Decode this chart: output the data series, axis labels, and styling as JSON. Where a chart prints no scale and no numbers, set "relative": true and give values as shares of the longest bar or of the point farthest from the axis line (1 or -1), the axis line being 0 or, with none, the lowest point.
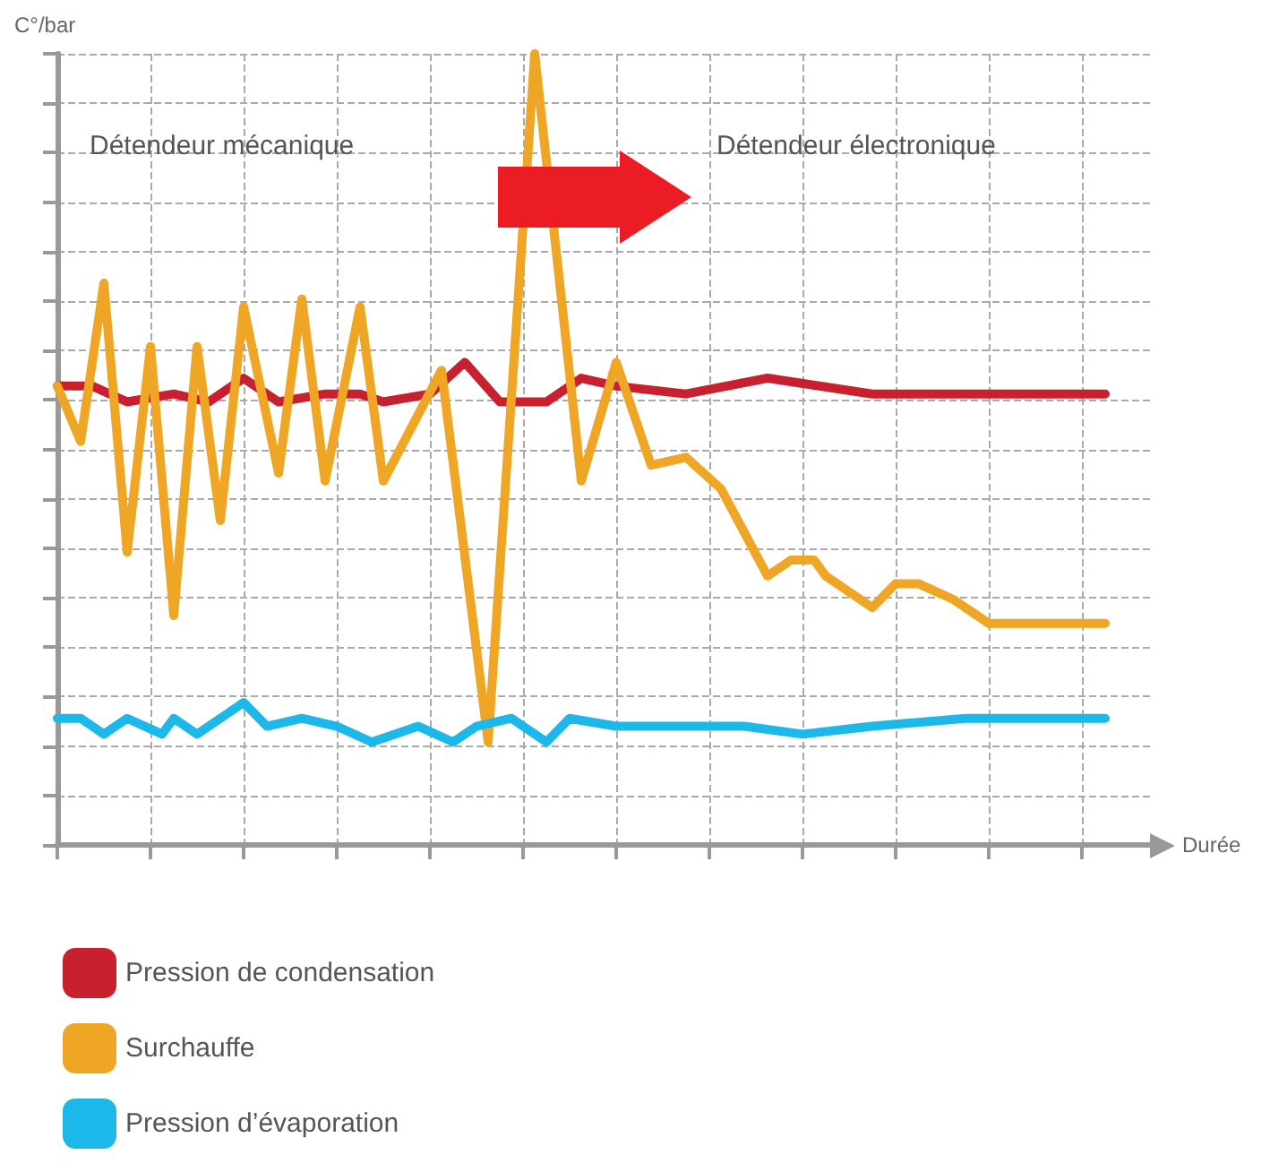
{
  "chart_data": {
    "type": "line",
    "relative": true,
    "ylabel": "C°/bar",
    "xlabel": "Durée",
    "annotations": [
      "Détendeur mécanique",
      "Détendeur électronique"
    ],
    "categories": [
      null,
      null,
      null,
      null,
      null,
      null,
      null,
      null,
      null,
      null,
      null,
      null,
      null,
      null,
      null,
      null,
      null,
      null,
      null,
      null,
      null,
      null,
      null,
      null,
      null,
      null,
      null,
      null,
      null,
      null,
      null,
      null,
      null,
      null,
      null,
      null,
      null,
      null,
      null,
      null,
      null,
      null,
      null,
      null,
      null,
      null,
      null,
      null,
      null,
      null,
      null,
      null,
      null,
      null,
      null,
      null,
      null,
      null,
      null,
      null,
      null,
      null,
      null,
      null,
      null,
      null,
      null,
      null,
      null,
      null,
      null,
      null,
      null,
      null,
      null,
      null,
      null,
      null,
      null,
      null,
      null,
      null,
      null,
      null,
      null,
      null,
      null,
      null,
      null,
      null,
      null,
      null,
      null,
      null,
      null
    ],
    "grid": true,
    "legend": "bottom",
    "marker": "none",
    "series": [
      {
        "name": "Pression de condensation",
        "color": "#c8202f",
        "values": [
          0.58,
          null,
          null,
          0.58,
          null,
          null,
          0.56,
          null,
          null,
          null,
          0.57,
          null,
          null,
          0.56,
          null,
          null,
          0.59,
          null,
          null,
          0.56,
          null,
          null,
          null,
          0.57,
          null,
          null,
          0.57,
          null,
          0.56,
          null,
          null,
          null,
          0.57,
          null,
          null,
          0.61,
          null,
          null,
          0.56,
          null,
          null,
          null,
          0.56,
          null,
          null,
          0.59,
          null,
          null,
          0.58,
          null,
          null,
          null,
          null,
          null,
          0.57,
          null,
          null,
          null,
          null,
          null,
          null,
          0.59,
          null,
          null,
          null,
          null,
          null,
          null,
          null,
          null,
          0.57,
          null,
          null,
          null,
          null,
          null,
          null,
          null,
          null,
          0.57,
          null,
          null,
          null,
          null,
          null,
          null,
          null,
          null,
          null,
          null,
          0.57,
          null,
          null,
          null,
          null
        ]
      },
      {
        "name": "Surchauffe",
        "color": "#eea624",
        "values": [
          0.58,
          null,
          0.51,
          null,
          0.71,
          null,
          0.37,
          null,
          0.63,
          null,
          0.29,
          null,
          0.63,
          null,
          0.41,
          null,
          0.68,
          null,
          null,
          0.47,
          null,
          0.69,
          null,
          0.46,
          null,
          null,
          0.68,
          null,
          0.46,
          null,
          null,
          null,
          null,
          0.6,
          null,
          null,
          null,
          0.13,
          null,
          null,
          null,
          1,
          null,
          null,
          null,
          0.46,
          null,
          null,
          0.61,
          null,
          null,
          0.48,
          null,
          null,
          0.49,
          null,
          null,
          0.45,
          null,
          null,
          null,
          0.34,
          null,
          0.36,
          null,
          0.36,
          0.34,
          null,
          null,
          null,
          0.3,
          null,
          0.33,
          null,
          0.33,
          null,
          null,
          0.31,
          null,
          null,
          0.28,
          null,
          null,
          null,
          null,
          null,
          null,
          null,
          null,
          null,
          0.28,
          null,
          null,
          null,
          null
        ]
      },
      {
        "name": "Pression d’évaporation",
        "color": "#1cb8ea",
        "values": [
          0.16,
          null,
          0.16,
          null,
          0.14,
          null,
          0.16,
          null,
          null,
          0.14,
          0.16,
          null,
          0.14,
          null,
          null,
          null,
          0.18,
          null,
          0.15,
          null,
          null,
          0.16,
          null,
          null,
          0.15,
          null,
          null,
          0.13,
          null,
          null,
          null,
          0.15,
          null,
          null,
          0.13,
          null,
          0.15,
          null,
          null,
          0.16,
          null,
          null,
          0.13,
          null,
          0.16,
          null,
          null,
          null,
          0.15,
          null,
          null,
          0.15,
          null,
          null,
          null,
          null,
          null,
          null,
          null,
          0.15,
          null,
          null,
          null,
          null,
          0.14,
          null,
          null,
          null,
          null,
          null,
          0.15,
          null,
          null,
          null,
          null,
          null,
          null,
          null,
          0.16,
          null,
          null,
          null,
          null,
          null,
          null,
          null,
          null,
          null,
          null,
          null,
          0.16,
          null,
          null,
          null,
          null
        ]
      }
    ]
  }
}
